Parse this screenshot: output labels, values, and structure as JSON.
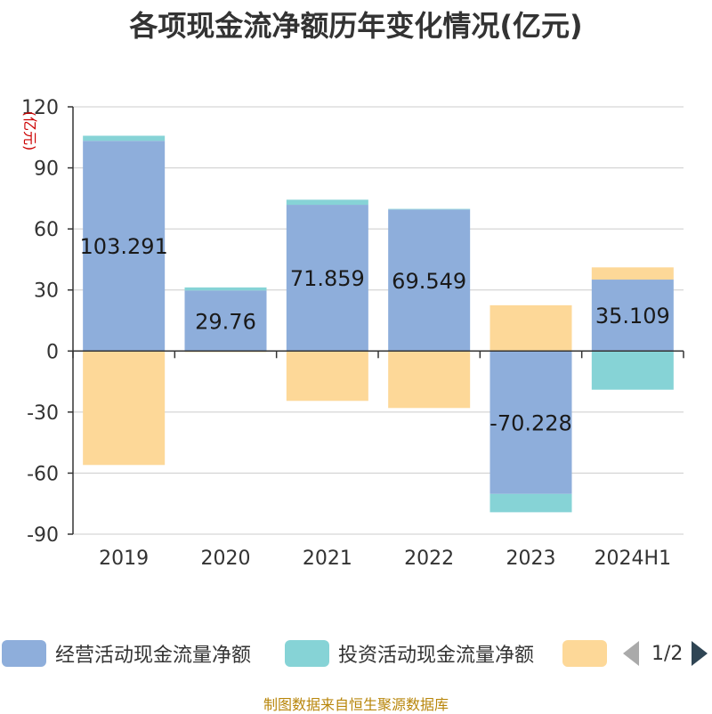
{
  "chart_data": {
    "type": "bar",
    "stacked": true,
    "title": "各项现金流净额历年变化情况(亿元)",
    "ylabel": "(亿元)",
    "ylim": [
      -90,
      120
    ],
    "yticks": [
      120,
      90,
      60,
      30,
      0,
      -30,
      -60,
      -90
    ],
    "categories": [
      "2019",
      "2020",
      "2021",
      "2022",
      "2023",
      "2024H1"
    ],
    "series": [
      {
        "name": "经营活动现金流量净额",
        "color": "#8eaedb",
        "values": [
          103.291,
          29.76,
          71.859,
          69.549,
          -70.228,
          35.109
        ],
        "labels": [
          "103.291",
          "29.76",
          "71.859",
          "69.549",
          "-70.228",
          "35.109"
        ]
      },
      {
        "name": "投资活动现金流量净额",
        "color": "#86d3d6",
        "values": [
          2.5,
          1.5,
          2.5,
          0.3,
          -9.0,
          -19.0
        ]
      },
      {
        "name": "",
        "color": "#fdd898",
        "values": [
          -56.0,
          -0.5,
          -24.5,
          -28.0,
          22.5,
          6.0
        ]
      }
    ],
    "grid": true,
    "legend": "bottom"
  },
  "legend": {
    "items": [
      {
        "label": "经营活动现金流量净额",
        "color": "#8eaedb"
      },
      {
        "label": "投资活动现金流量净额",
        "color": "#86d3d6"
      },
      {
        "label": "",
        "color": "#fdd898"
      }
    ],
    "pager": "1/2"
  },
  "footer": {
    "source": "制图数据来自恒生聚源数据库"
  },
  "colors": {
    "grid": "#cccccc",
    "axis": "#333333",
    "unit": "#cc0000",
    "text": "#333333"
  }
}
